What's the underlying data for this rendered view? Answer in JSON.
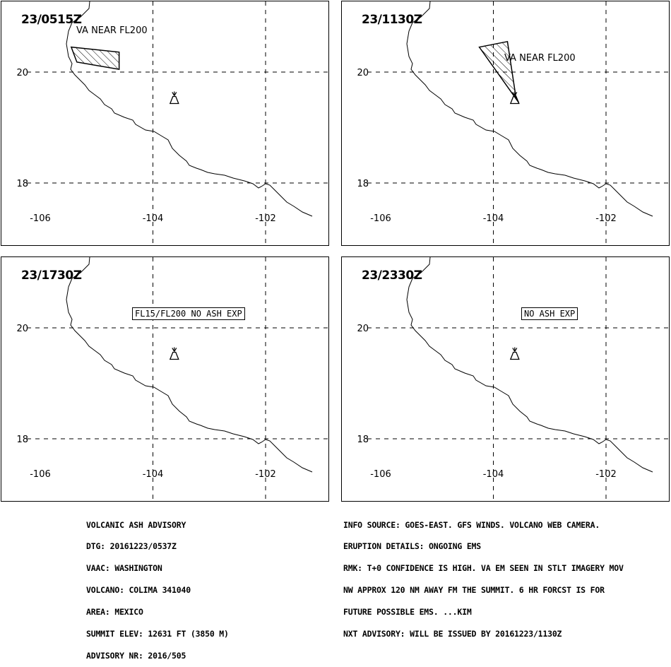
{
  "panels": [
    {
      "time": "23/0515Z",
      "annotation_type": "label",
      "annotation": "VA NEAR FL200",
      "polygon": [
        [
          -105.45,
          20.45
        ],
        [
          -104.6,
          20.36
        ],
        [
          -104.6,
          20.05
        ],
        [
          -105.35,
          20.18
        ]
      ]
    },
    {
      "time": "23/1130Z",
      "annotation_type": "label",
      "annotation": "VA NEAR FL200",
      "polygon": [
        [
          -104.25,
          20.45
        ],
        [
          -103.75,
          20.55
        ],
        [
          -103.6,
          19.55
        ],
        [
          -103.55,
          19.45
        ]
      ]
    },
    {
      "time": "23/1730Z",
      "annotation_type": "box",
      "annotation": "FL15/FL200 NO ASH EXP",
      "polygon": []
    },
    {
      "time": "23/2330Z",
      "annotation_type": "box",
      "annotation": "NO ASH EXP",
      "polygon": []
    }
  ],
  "axes": {
    "lon_ticks": [
      -106,
      -104,
      -102
    ],
    "lat_ticks": [
      20,
      18
    ],
    "lon_labels": [
      "-106",
      "-104",
      "-102"
    ],
    "lat_labels": [
      "20",
      "18"
    ]
  },
  "volcano": {
    "lon": -103.62,
    "lat": 19.51
  },
  "advisory": {
    "left_lines": [
      "VOLCANIC ASH ADVISORY",
      "DTG: 20161223/0537Z",
      "VAAC: WASHINGTON",
      "VOLCANO: COLIMA 341040",
      "AREA: MEXICO",
      "SUMMIT ELEV: 12631 FT (3850 M)",
      "ADVISORY NR: 2016/505"
    ],
    "right_lines": [
      "INFO SOURCE: GOES-EAST. GFS WINDS. VOLCANO WEB CAMERA.",
      "ERUPTION DETAILS: ONGOING EMS",
      "RMK: T+0 CONFIDENCE IS HIGH. VA EM SEEN IN STLT IMAGERY MOV",
      "NW APPROX 120 NM AWAY FM THE SUMMIT. 6 HR FORCST IS FOR",
      "FUTURE POSSIBLE EMS. ...KIM",
      "NXT ADVISORY: WILL BE ISSUED BY 20161223/1130Z"
    ]
  }
}
